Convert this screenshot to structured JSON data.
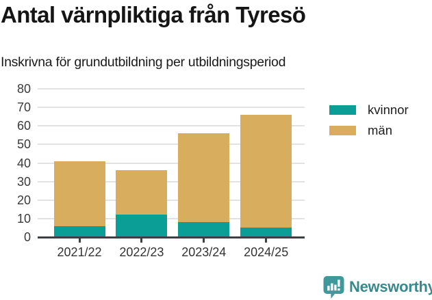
{
  "header": {
    "title": "Antal värnpliktiga från Tyresö",
    "subtitle": "Inskrivna för grundutbildning per utbildningsperiod"
  },
  "chart_data": {
    "type": "bar",
    "stacked": true,
    "title": "Antal värnpliktiga från Tyresö",
    "subtitle": "Inskrivna för grundutbildning per utbildningsperiod",
    "categories": [
      "2021/22",
      "2022/23",
      "2023/24",
      "2024/25"
    ],
    "series": [
      {
        "name": "kvinnor",
        "color": "#0a9e96",
        "values": [
          6,
          12,
          8,
          5
        ]
      },
      {
        "name": "män",
        "color": "#d8ae5e",
        "values": [
          35,
          24,
          48,
          61
        ]
      }
    ],
    "stacked_totals": [
      41,
      36,
      56,
      66
    ],
    "xlabel": "",
    "ylabel": "",
    "ylim": [
      0,
      80
    ],
    "ytick_step": 10,
    "grid": true,
    "legend_position": "right"
  },
  "legend": {
    "items": [
      {
        "label": "kvinnor",
        "color": "#0a9e96"
      },
      {
        "label": "män",
        "color": "#d8ae5e"
      }
    ]
  },
  "footer": {
    "brand": "Newsworthy",
    "logo_icon": "bar-chart-speech-bubble-icon"
  },
  "colors": {
    "series_kvinnor": "#0a9e96",
    "series_man": "#d8ae5e",
    "axis": "#3c4043",
    "gridline": "#e2e2e2",
    "tick_label": "#333333",
    "text": "#151515",
    "brand_teal": "#38898b",
    "background": "#ffffff"
  }
}
